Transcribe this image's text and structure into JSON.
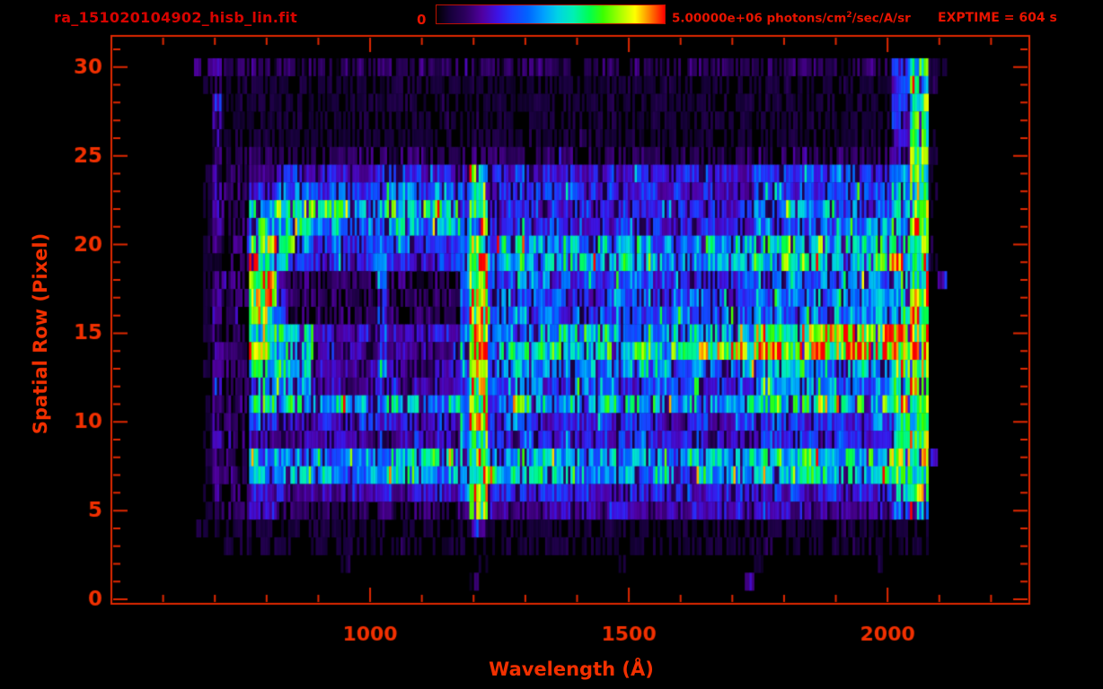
{
  "header": {
    "title": "ra_151020104902_hisb_lin.fit",
    "colorbar_min": "0",
    "colorbar_max_prefix": "5.00000e+06 photons/cm",
    "colorbar_max_sup": "2",
    "colorbar_max_suffix": "/sec/A/sr",
    "exptime": "EXPTIME = 604 s"
  },
  "colors": {
    "background": "#000000",
    "title_red": "#d60400",
    "header_red": "#e81400",
    "axis_red": "#e02800",
    "label_red": "#f23000",
    "colorbar_border": "#bb1100",
    "colormap_stops": [
      [
        0.0,
        "#000000"
      ],
      [
        0.06,
        "#16003a"
      ],
      [
        0.13,
        "#2e0060"
      ],
      [
        0.2,
        "#5000a0"
      ],
      [
        0.27,
        "#3c14e6"
      ],
      [
        0.33,
        "#1e3cff"
      ],
      [
        0.4,
        "#0064ff"
      ],
      [
        0.47,
        "#00a0ff"
      ],
      [
        0.53,
        "#00d2e6"
      ],
      [
        0.6,
        "#00f0b4"
      ],
      [
        0.67,
        "#00ff50"
      ],
      [
        0.73,
        "#3cff00"
      ],
      [
        0.8,
        "#a0ff00"
      ],
      [
        0.87,
        "#ffff00"
      ],
      [
        0.93,
        "#ff8c00"
      ],
      [
        1.0,
        "#ff0000"
      ]
    ]
  },
  "chart_data": {
    "type": "heatmap",
    "title": "ra_151020104902_hisb_lin.fit",
    "xlabel": "Wavelength (Å)",
    "ylabel": "Spatial Row (Pixel)",
    "x_range_angstrom": [
      500,
      2274
    ],
    "y_range_rows": [
      0,
      31
    ],
    "x_major_ticks": [
      {
        "value": 1000,
        "label": "1000"
      },
      {
        "value": 1500,
        "label": "1500"
      },
      {
        "value": 2000,
        "label": "2000"
      }
    ],
    "x_minor_tick_step": 100,
    "y_major_ticks": [
      {
        "value": 0,
        "label": "0"
      },
      {
        "value": 5,
        "label": "5"
      },
      {
        "value": 10,
        "label": "10"
      },
      {
        "value": 15,
        "label": "15"
      },
      {
        "value": 20,
        "label": "20"
      },
      {
        "value": 25,
        "label": "25"
      },
      {
        "value": 30,
        "label": "30"
      }
    ],
    "y_minor_tick_step": 1,
    "intensity_min": 0,
    "intensity_max": 5000000,
    "intensity_units": "photons/cm2/sec/A/sr",
    "exposure_time_s": 604,
    "legend_position": "top",
    "grid_on": false,
    "notable_features": [
      "bright vertical emission line near 1200 A spanning rows 5-24 (Lyman alpha), yellow-green core",
      "fainter vertical emission line near 1300 A",
      "faint vertical enhancement near 1020 A and thin blue edge column near 700 A",
      "hook/loop shaped glow 780-1020 A between rows 13 and 23 with bright green left limb",
      "bright horizontal continuum rows 19-20 (cyan) and rows 14-15 reaching yellow/orange/red near 1900-2070 A",
      "bright green column strip 2010-2070 A over rows 5-30 with red specks near rows 13-14",
      "sparse violet noise streaks over rows 25-30 and rows 3-4; rows 0-2 nearly empty"
    ],
    "noise_seed": 20151020,
    "grid_encoding": "31 strings, top string = spatial row 30, bottom = row 0; each string has 100 hex chars (columns spanning 500-2274 Angstrom); char value 0-15 = linear intensity 0 to 5e6",
    "grid": [
      "0000000002232222222222222222222222222222222222222222222222222222222222222222222222222 55aa11000000000",
      "0000000000121111111111111111111111111111111111111111111111111111111111111111111111111 449910000000000",
      "0000000000031111111111111111111111111111111111111111111111111111111111111111111111111 449900000000000",
      "0000000000031111111111111111111111111111111111111111111111111111111111111111111111111 449900000000000",
      "0000000000031111111111111111111111111111111111111111111111111111111111111111111111111 449910000000000",
      "0000000000132222222222222222222222222222222222222222222222222222222222222222222222222 449910000000000",
      "000000000013 222333 44444444444444444444 58844455 444444444444444444444444 555555555555555 77aa10 000000000",
      "000000000013 222444 5566 6666666666666666 59954455 444444444444444444444444 555555555555555 77aa10 000000000",
      "000000000013 222788 88888888888888888888 6aa54455 444444444444444444444444 666666666666666 88bb10 000000000",
      "000000000013 222888 99aa 7777777777777777 5aa54455 444444444444444444444444 666666666666666 88bb00 000000000",
      "000000000013 222aaa 8866 5555555555555555 6bb67777 777777777777777777777777 888888888888888 99bb10 000000000",
      "000000000013 222bbb 7555 4444444544444444 7cc78899 888888888888888888888888 999999999999999 aabb10 000000000",
      "000000000013 222bbb 4222 2222222522222222 5bb55566 555555555555555555555555 666666666666666 88aa03 000000000",
      "000000000013 222bbb 4222 2222222522222222 5bb55566 555555555555555555555555 666666666666666 88aa00 000000000",
      "000000000013 222aaa 4222 2222222422222222 5bb55566 555555555555555555555555 666666666666666 88aa00 000000000",
      "000000000013 222999 8888 3333333533333333 6bb66677 777777777777777777777777 aaaaaaaaabbbbbb cccc00 000000000",
      "000000000013 222aaa 8888 3333333533333333 7cc78899 888888888888888aaaaaaaaa cccccccccddddde eeee00 000000000",
      "000000000013 222888 8887 3333333533333333 6bb66677 666666666666666666666666 777777777777777 bbff00 000000000",
      "000000000013 222777 8888 3333333433333333 5bb55566 555555555555555555555555 666666666666666 aaeb00 000000000",
      "000000000013 222888 8888 7777777777777777 7bb77788 777777777777777777777777 999999999999999 aabb00 000000000",
      "000000000013 222555 44444444444444444444 5bb55555 444444444444444444444444 555555555555555 99ae00 000000000",
      "000000000013 222333 3333 3333333433333333 5aa54455 444444444444444444444444 555555555555555 99aa00 000000000",
      "000000000013 222777 77777777777777777777 8cc87788 777777777777777777777777 888888888888888 aabb40 000000000",
      "000000000013 222777 77777777777777777777 8cc87777 777777777777777777777777 888888888888888 aabb00 000000000",
      "000000000013 222444 3333 3333333433333333 5bb54444 444444444444444444444444 444444444444444 88aa00 000000000",
      "000000000012 222333 2222 2222222322222222 4bb43333 333333333333333333333333 333333333333333 669900 000000000",
      "000000000 111 111111111111111111111111111 33 11111111111111111111111111111111111111111111 111100 000000000",
      "000000000000 11111111111111111111111111111111111111111111111111111111111111111111111111111 00 000000000",
      "0000000000000000000000000 1 00000000000000 1 00000000000000 1 00000000000000 1 000000000000 1 0000000000000000",
      "000000000000000000000000000000000000000 2 00000000000000000000000000000 2 000000000000000000000000000000",
      "0000000000000000000000000000000000000000000000000000000000000000000000000000000000000000000000000000"
    ]
  }
}
